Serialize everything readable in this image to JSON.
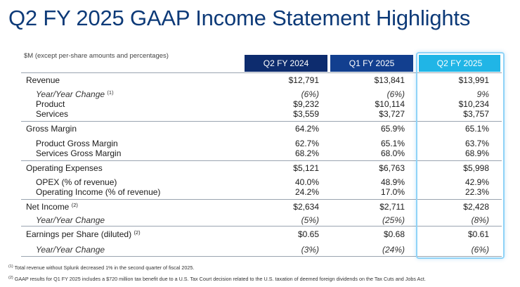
{
  "title": "Q2 FY 2025 GAAP Income Statement Highlights",
  "units_note": "$M (except per-share amounts and percentages)",
  "columns": [
    "Q2 FY 2024",
    "Q1 FY 2025",
    "Q2 FY 2025"
  ],
  "colors": {
    "title": "#0d3a78",
    "col1": "#0d2c6e",
    "col2": "#123f8f",
    "col3": "#20b5e6",
    "highlight_border": "#8fd3f7"
  },
  "rows": {
    "revenue": {
      "label": "Revenue",
      "values": [
        "$12,791",
        "$13,841",
        "$13,991"
      ]
    },
    "yoy": {
      "label": "Year/Year Change",
      "note": "(1)",
      "values": [
        "(6%)",
        "(6%)",
        "9%"
      ]
    },
    "product": {
      "label": "Product",
      "values": [
        "$9,232",
        "$10,114",
        "$10,234"
      ]
    },
    "services": {
      "label": "Services",
      "values": [
        "$3,559",
        "$3,727",
        "$3,757"
      ]
    },
    "gross_margin": {
      "label": "Gross Margin",
      "values": [
        "64.2%",
        "65.9%",
        "65.1%"
      ]
    },
    "product_gm": {
      "label": "Product Gross Margin",
      "values": [
        "62.7%",
        "65.1%",
        "63.7%"
      ]
    },
    "services_gm": {
      "label": "Services Gross Margin",
      "values": [
        "68.2%",
        "68.0%",
        "68.9%"
      ]
    },
    "opex": {
      "label": "Operating Expenses",
      "values": [
        "$5,121",
        "$6,763",
        "$5,998"
      ]
    },
    "opex_pct": {
      "label": "OPEX (% of revenue)",
      "values": [
        "40.0%",
        "48.9%",
        "42.9%"
      ]
    },
    "op_income_pct": {
      "label": "Operating Income (% of revenue)",
      "values": [
        "24.2%",
        "17.0%",
        "22.3%"
      ]
    },
    "net_income": {
      "label": "Net Income",
      "note": "(2)",
      "values": [
        "$2,634",
        "$2,711",
        "$2,428"
      ]
    },
    "ni_yoy": {
      "label": "Year/Year Change",
      "values": [
        "(5%)",
        "(25%)",
        "(8%)"
      ]
    },
    "eps": {
      "label": "Earnings per Share (diluted)",
      "note": "(2)",
      "values": [
        "$0.65",
        "$0.68",
        "$0.61"
      ]
    },
    "eps_yoy": {
      "label": "Year/Year Change",
      "values": [
        "(3%)",
        "(24%)",
        "(6%)"
      ]
    }
  },
  "footnotes": [
    {
      "mark": "(1)",
      "text": "Total revenue without Splunk decreased 1% in the second quarter of fiscal 2025."
    },
    {
      "mark": "(2)",
      "text": "GAAP results for Q1 FY 2025 includes a $720 million tax benefit due to a U.S. Tax Court decision related to the U.S. taxation of deemed foreign dividends on the Tax Cuts and Jobs Act."
    }
  ]
}
